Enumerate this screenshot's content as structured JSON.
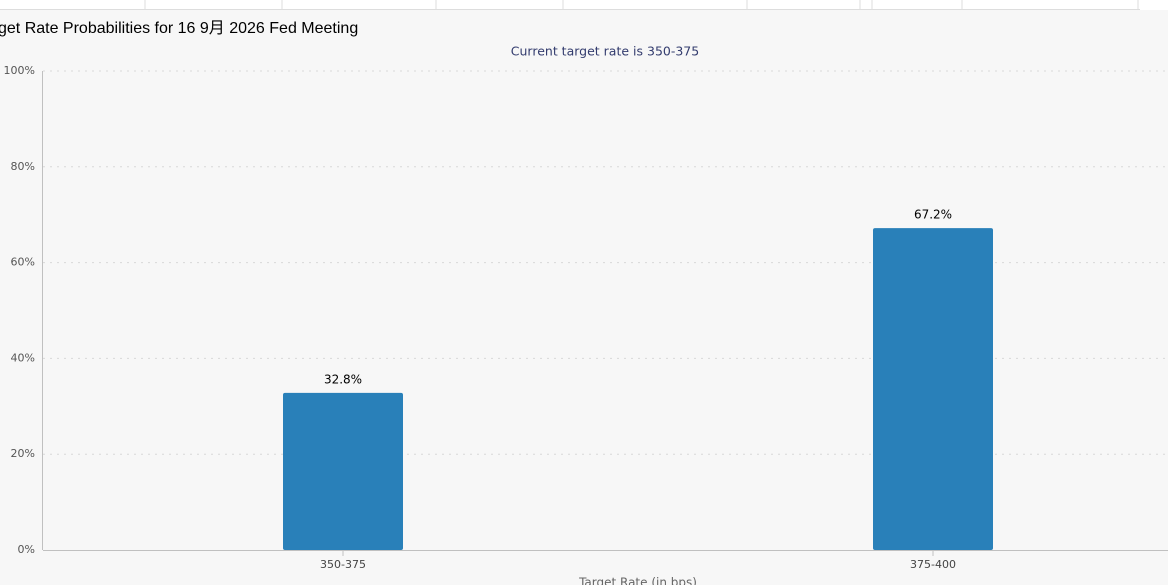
{
  "chart_data": {
    "type": "bar",
    "title": "get Rate Probabilities for 16 9月 2026 Fed Meeting",
    "subtitle": "Current target rate is 350-375",
    "x_label": "Target Rate (in bps)",
    "categories": [
      "350-375",
      "375-400"
    ],
    "values": [
      32.8,
      67.2
    ],
    "value_labels": [
      "32.8%",
      "67.2%"
    ],
    "color": "#2980b9",
    "ylim": [
      0,
      100
    ],
    "yticks": [
      {
        "value": 0,
        "label": "0%"
      },
      {
        "value": 20,
        "label": "20%"
      },
      {
        "value": 40,
        "label": "40%"
      },
      {
        "value": 60,
        "label": "60%"
      },
      {
        "value": 80,
        "label": "80%"
      },
      {
        "value": 100,
        "label": "100%"
      }
    ],
    "grid": true
  }
}
